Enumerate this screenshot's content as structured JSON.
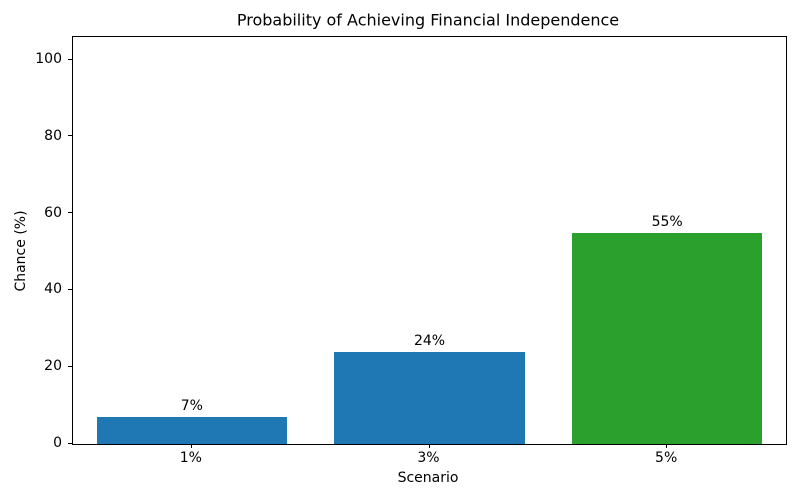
{
  "chart_data": {
    "type": "bar",
    "title": "Probability of Achieving Financial Independence",
    "xlabel": "Scenario",
    "ylabel": "Chance (%)",
    "categories": [
      "1%",
      "3%",
      "5%"
    ],
    "values": [
      7,
      24,
      55
    ],
    "bar_labels": [
      "7%",
      "24%",
      "55%"
    ],
    "bar_colors": [
      "#1f77b4",
      "#1f77b4",
      "#2ca02c"
    ],
    "yticks": [
      0,
      20,
      40,
      60,
      80,
      100
    ],
    "ylim": [
      0,
      106
    ],
    "grid": false,
    "legend_position": "none",
    "axis_color": "#000000",
    "background_color": "#ffffff"
  }
}
